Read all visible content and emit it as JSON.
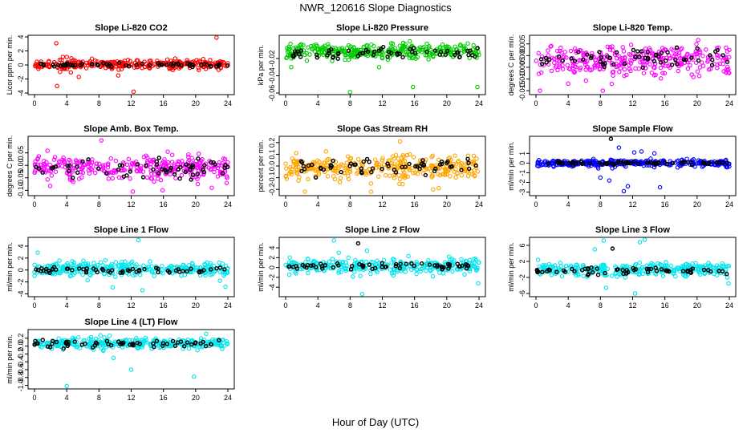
{
  "figure": {
    "title": "NWR_120616  Slope Diagnostics",
    "xlabel": "Hour of Day (UTC)"
  },
  "chart_data": [
    {
      "type": "scatter",
      "title": "Slope Li-820 CO2",
      "ylabel": "Licor ppm per min.",
      "xlim": [
        0,
        24
      ],
      "ylim": [
        -4,
        4
      ],
      "xticks": [
        "0",
        "4",
        "8",
        "12",
        "16",
        "20",
        "24"
      ],
      "yticks": [
        "-4",
        "-2",
        "0",
        "2",
        "4"
      ],
      "series": [
        {
          "color": "#ff0000",
          "center": 0.1,
          "spread": 0.6,
          "outliers": [
            [
              2.7,
              3.1
            ],
            [
              12.3,
              -3.8
            ],
            [
              22.6,
              3.9
            ],
            [
              2.8,
              -3.0
            ],
            [
              5.5,
              -1.7
            ],
            [
              10.4,
              -1.5
            ]
          ]
        },
        {
          "color": "#000000",
          "center": 0.0,
          "spread": 0.2,
          "outliers": []
        }
      ]
    },
    {
      "type": "scatter",
      "title": "Slope Li-820 Pressure",
      "ylabel": "kPa per min.",
      "xlim": [
        0,
        24
      ],
      "ylim": [
        -0.06,
        0.005
      ],
      "xticks": [
        "0",
        "4",
        "8",
        "12",
        "16",
        "20",
        "24"
      ],
      "yticks": [
        "-0.06",
        "-0.04",
        "-0.02"
      ],
      "series": [
        {
          "color": "#00cc00",
          "center": -0.012,
          "spread": 0.008,
          "outliers": [
            [
              8.0,
              -0.059
            ],
            [
              15.8,
              -0.053
            ],
            [
              23.8,
              -0.053
            ],
            [
              0.7,
              -0.03
            ],
            [
              11.6,
              -0.03
            ],
            [
              13.3,
              -0.003
            ]
          ]
        },
        {
          "color": "#000000",
          "center": -0.014,
          "spread": 0.006,
          "outliers": []
        }
      ]
    },
    {
      "type": "scatter",
      "title": "Slope Li-820 Temp.",
      "ylabel": "degrees C per min.",
      "xlim": [
        0,
        24
      ],
      "ylim": [
        -0.016,
        0.008
      ],
      "xticks": [
        "0",
        "4",
        "8",
        "12",
        "16",
        "20",
        "24"
      ],
      "yticks": [
        "-0.015",
        "-0.010",
        "-0.005",
        "0.000",
        "0.005"
      ],
      "series": [
        {
          "color": "#ff00ff",
          "center": -0.002,
          "spread": 0.006,
          "outliers": [
            [
              0.5,
              -0.015
            ],
            [
              8.3,
              -0.015
            ],
            [
              4.0,
              -0.012
            ],
            [
              23.6,
              -0.006
            ]
          ]
        },
        {
          "color": "#000000",
          "center": -0.001,
          "spread": 0.004,
          "outliers": []
        }
      ]
    },
    {
      "type": "scatter",
      "title": "Slope Amb. Box Temp.",
      "ylabel": "degrees C per min.",
      "xlim": [
        0,
        24
      ],
      "ylim": [
        -0.115,
        0.11
      ],
      "xticks": [
        "0",
        "4",
        "8",
        "12",
        "16",
        "20",
        "24"
      ],
      "yticks": [
        "-0.10",
        "-0.05",
        "0.00",
        "0.05"
      ],
      "series": [
        {
          "color": "#ff00ff",
          "center": -0.01,
          "spread": 0.045,
          "outliers": [
            [
              8.3,
              0.1
            ],
            [
              12.2,
              -0.105
            ],
            [
              15.9,
              -0.1
            ],
            [
              22.0,
              -0.09
            ]
          ]
        },
        {
          "color": "#000000",
          "center": -0.01,
          "spread": 0.035,
          "outliers": []
        }
      ]
    },
    {
      "type": "scatter",
      "title": "Slope Gas Stream RH",
      "ylabel": "percent per min.",
      "xlim": [
        0,
        24
      ],
      "ylim": [
        -0.24,
        0.24
      ],
      "xticks": [
        "0",
        "4",
        "8",
        "12",
        "16",
        "20",
        "24"
      ],
      "yticks": [
        "-0.2",
        "-0.1",
        "0.0",
        "0.1",
        "0.2"
      ],
      "series": [
        {
          "color": "#ffa500",
          "center": -0.01,
          "spread": 0.1,
          "outliers": [
            [
              2.4,
              -0.22
            ],
            [
              10.6,
              -0.22
            ],
            [
              14.2,
              0.21
            ],
            [
              18.3,
              -0.2
            ]
          ]
        },
        {
          "color": "#000000",
          "center": 0.0,
          "spread": 0.06,
          "outliers": []
        }
      ]
    },
    {
      "type": "scatter",
      "title": "Slope Sample Flow",
      "ylabel": "ml/min per min.",
      "xlim": [
        0,
        24
      ],
      "ylim": [
        -3.2,
        2.6
      ],
      "xticks": [
        "0",
        "4",
        "8",
        "12",
        "16",
        "20",
        "24"
      ],
      "yticks": [
        "-3",
        "-2",
        "-1",
        "0",
        "1"
      ],
      "series": [
        {
          "color": "#0000ff",
          "center": 0.0,
          "spread": 0.3,
          "outliers": [
            [
              8.0,
              -1.5
            ],
            [
              9.1,
              -1.8
            ],
            [
              10.9,
              -2.9
            ],
            [
              11.4,
              -2.4
            ],
            [
              10.3,
              1.6
            ],
            [
              15.4,
              -2.5
            ],
            [
              13.1,
              1.2
            ],
            [
              12.2,
              1.1
            ],
            [
              14.7,
              1.0
            ]
          ]
        },
        {
          "color": "#000000",
          "center": 0.0,
          "spread": 0.15,
          "outliers": [
            [
              9.3,
              2.5
            ]
          ]
        }
      ]
    },
    {
      "type": "scatter",
      "title": "Slope Line 1 Flow",
      "ylabel": "ml/min per min.",
      "xlim": [
        0,
        24
      ],
      "ylim": [
        -4.2,
        5.2
      ],
      "xticks": [
        "0",
        "4",
        "8",
        "12",
        "16",
        "20",
        "24"
      ],
      "yticks": [
        "-4",
        "-2",
        "0",
        "2",
        "4"
      ],
      "series": [
        {
          "color": "#00e5ee",
          "center": 0.2,
          "spread": 1.1,
          "outliers": [
            [
              12.9,
              5.0
            ],
            [
              13.4,
              -3.4
            ],
            [
              9.7,
              -2.9
            ],
            [
              23.7,
              -2.8
            ],
            [
              0.4,
              2.9
            ]
          ]
        },
        {
          "color": "#000000",
          "center": 0.0,
          "spread": 0.5,
          "outliers": []
        }
      ]
    },
    {
      "type": "scatter",
      "title": "Slope Line 2 Flow",
      "ylabel": "ml/min per min.",
      "xlim": [
        0,
        24
      ],
      "ylim": [
        -5.6,
        5.8
      ],
      "xticks": [
        "0",
        "4",
        "8",
        "12",
        "16",
        "20",
        "24"
      ],
      "yticks": [
        "-4",
        "-2",
        "0",
        "2",
        "4"
      ],
      "series": [
        {
          "color": "#00e5ee",
          "center": 0.3,
          "spread": 1.3,
          "outliers": [
            [
              6.0,
              5.5
            ],
            [
              9.5,
              -5.4
            ],
            [
              23.9,
              -3.2
            ],
            [
              6.6,
              3.0
            ],
            [
              10.1,
              3.4
            ]
          ]
        },
        {
          "color": "#000000",
          "center": 0.3,
          "spread": 0.5,
          "outliers": [
            [
              9.0,
              4.9
            ]
          ]
        }
      ]
    },
    {
      "type": "scatter",
      "title": "Slope Line 3 Flow",
      "ylabel": "ml/min per min.",
      "xlim": [
        0,
        24
      ],
      "ylim": [
        -6.4,
        7.6
      ],
      "xticks": [
        "0",
        "4",
        "8",
        "12",
        "16",
        "20",
        "24"
      ],
      "yticks": [
        "-6",
        "-2",
        "2",
        "6"
      ],
      "series": [
        {
          "color": "#00e5ee",
          "center": 0.0,
          "spread": 1.5,
          "outliers": [
            [
              8.4,
              7.2
            ],
            [
              12.9,
              6.8
            ],
            [
              13.5,
              7.4
            ],
            [
              12.3,
              -6.0
            ],
            [
              23.9,
              -3.5
            ],
            [
              7.3,
              5.0
            ],
            [
              8.7,
              -4.6
            ]
          ]
        },
        {
          "color": "#000000",
          "center": -0.3,
          "spread": 0.7,
          "outliers": [
            [
              9.5,
              5.2
            ]
          ]
        }
      ]
    },
    {
      "type": "scatter",
      "title": "Slope Line 4 (LT) Flow",
      "ylabel": "ml/min per min.",
      "xlim": [
        0,
        24
      ],
      "ylim": [
        -1.05,
        0.38
      ],
      "xticks": [
        "0",
        "4",
        "8",
        "12",
        "16",
        "20",
        "24"
      ],
      "yticks": [
        "-1.0",
        "-0.8",
        "-0.6",
        "-0.4",
        "-0.2",
        "0.0",
        "0.2"
      ],
      "series": [
        {
          "color": "#00e5ee",
          "center": 0.07,
          "spread": 0.12,
          "outliers": [
            [
              4.0,
              -1.02
            ],
            [
              12.0,
              -0.6
            ],
            [
              19.8,
              -0.78
            ],
            [
              21.3,
              0.31
            ],
            [
              9.8,
              -0.3
            ]
          ]
        },
        {
          "color": "#000000",
          "center": 0.05,
          "spread": 0.09,
          "outliers": []
        }
      ]
    }
  ]
}
